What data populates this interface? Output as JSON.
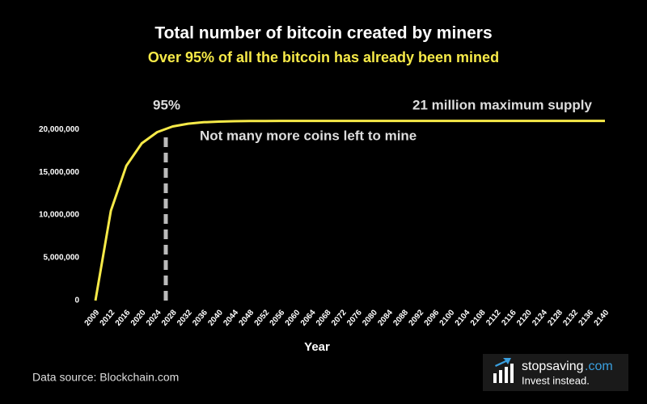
{
  "chart_data": {
    "type": "line",
    "title": "Total number of bitcoin created by miners",
    "subtitle": "Over 95% of all the bitcoin has already been mined",
    "x_label": "Year",
    "annotations": [
      "95%",
      "21 million maximum supply",
      "Not many more coins left to mine"
    ],
    "categories": [
      "2009",
      "2012",
      "2016",
      "2020",
      "2024",
      "2028",
      "2032",
      "2036",
      "2040",
      "2044",
      "2048",
      "2052",
      "2056",
      "2060",
      "2064",
      "2068",
      "2072",
      "2076",
      "2080",
      "2084",
      "2088",
      "2092",
      "2096",
      "2100",
      "2104",
      "2108",
      "2112",
      "2116",
      "2120",
      "2124",
      "2128",
      "2132",
      "2136",
      "2140"
    ],
    "values": [
      0,
      10500000,
      15750000,
      18375000,
      19687500,
      20343750,
      20671875,
      20835938,
      20917969,
      20958984,
      20979492,
      20989746,
      20994873,
      20997437,
      20998718,
      20999359,
      20999680,
      20999840,
      20999920,
      20999960,
      20999980,
      20999990,
      20999995,
      20999998,
      20999999,
      21000000,
      21000000,
      21000000,
      21000000,
      21000000,
      21000000,
      21000000,
      21000000,
      21000000
    ],
    "color": "#f7ea48",
    "ylim": [
      0,
      22000000
    ],
    "yticks": [
      {
        "value": 0,
        "label": "0"
      },
      {
        "value": 5000000,
        "label": "5,000,000"
      },
      {
        "value": 10000000,
        "label": "10,000,000"
      },
      {
        "value": 15000000,
        "label": "15,000,000"
      },
      {
        "value": 20000000,
        "label": "20,000,000"
      }
    ],
    "grid": false
  },
  "footer": {
    "source": "Data source: Blockchain.com",
    "brand": "stopsaving",
    "brand_suffix": ".com",
    "tagline": "Invest instead."
  }
}
